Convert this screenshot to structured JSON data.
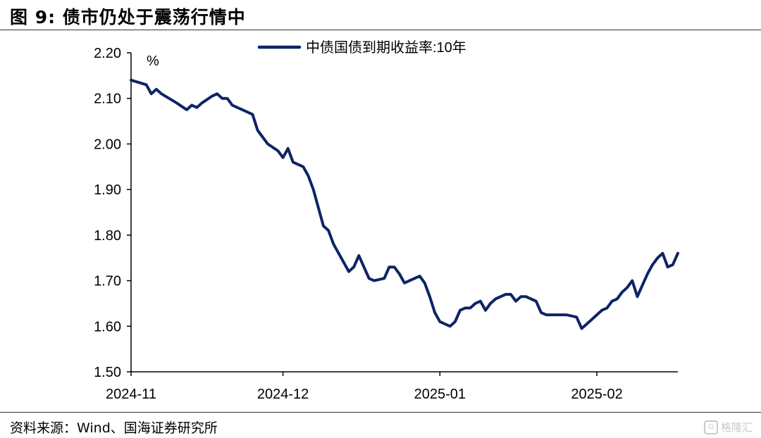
{
  "figure": {
    "title": "图 9:  债市仍处于震荡行情中",
    "source": "资料来源：Wind、国海证券研究所",
    "watermark": "格隆汇",
    "line_color": "#0d2466"
  },
  "chart_data": {
    "type": "line",
    "title": "",
    "xlabel": "",
    "ylabel": "%",
    "ylim": [
      1.5,
      2.2
    ],
    "yticks": [
      "1.50",
      "1.60",
      "1.70",
      "1.80",
      "1.90",
      "2.00",
      "2.10",
      "2.20"
    ],
    "xticks": [
      {
        "label": "2024-11",
        "day": 0
      },
      {
        "label": "2024-12",
        "day": 30
      },
      {
        "label": "2025-01",
        "day": 61
      },
      {
        "label": "2025-02",
        "day": 92
      }
    ],
    "legend": {
      "position": "top-center"
    },
    "grid": false,
    "series": [
      {
        "name": "中债国债到期收益率:10年",
        "points": [
          [
            0,
            2.14
          ],
          [
            3,
            2.13
          ],
          [
            4,
            2.11
          ],
          [
            5,
            2.12
          ],
          [
            6,
            2.11
          ],
          [
            9,
            2.09
          ],
          [
            11,
            2.075
          ],
          [
            12,
            2.085
          ],
          [
            13,
            2.08
          ],
          [
            14,
            2.09
          ],
          [
            16,
            2.105
          ],
          [
            17,
            2.11
          ],
          [
            18,
            2.1
          ],
          [
            19,
            2.1
          ],
          [
            20,
            2.085
          ],
          [
            22,
            2.075
          ],
          [
            24,
            2.065
          ],
          [
            25,
            2.03
          ],
          [
            27,
            2.0
          ],
          [
            29,
            1.985
          ],
          [
            30,
            1.97
          ],
          [
            31,
            1.99
          ],
          [
            32,
            1.96
          ],
          [
            34,
            1.95
          ],
          [
            35,
            1.93
          ],
          [
            36,
            1.9
          ],
          [
            38,
            1.82
          ],
          [
            39,
            1.81
          ],
          [
            40,
            1.78
          ],
          [
            41,
            1.76
          ],
          [
            43,
            1.72
          ],
          [
            44,
            1.73
          ],
          [
            45,
            1.755
          ],
          [
            46,
            1.73
          ],
          [
            47,
            1.705
          ],
          [
            48,
            1.7
          ],
          [
            50,
            1.705
          ],
          [
            51,
            1.73
          ],
          [
            52,
            1.73
          ],
          [
            53,
            1.715
          ],
          [
            54,
            1.695
          ],
          [
            55,
            1.7
          ],
          [
            56,
            1.705
          ],
          [
            57,
            1.71
          ],
          [
            58,
            1.695
          ],
          [
            59,
            1.665
          ],
          [
            60,
            1.63
          ],
          [
            61,
            1.61
          ],
          [
            62,
            1.605
          ],
          [
            63,
            1.6
          ],
          [
            64,
            1.61
          ],
          [
            65,
            1.635
          ],
          [
            66,
            1.64
          ],
          [
            67,
            1.64
          ],
          [
            68,
            1.65
          ],
          [
            69,
            1.655
          ],
          [
            70,
            1.635
          ],
          [
            71,
            1.65
          ],
          [
            72,
            1.66
          ],
          [
            73,
            1.665
          ],
          [
            74,
            1.67
          ],
          [
            75,
            1.67
          ],
          [
            76,
            1.655
          ],
          [
            77,
            1.665
          ],
          [
            78,
            1.665
          ],
          [
            79,
            1.66
          ],
          [
            80,
            1.655
          ],
          [
            81,
            1.63
          ],
          [
            82,
            1.625
          ],
          [
            84,
            1.625
          ],
          [
            86,
            1.625
          ],
          [
            88,
            1.62
          ],
          [
            89,
            1.595
          ],
          [
            90,
            1.605
          ],
          [
            91,
            1.615
          ],
          [
            92,
            1.625
          ],
          [
            93,
            1.635
          ],
          [
            94,
            1.64
          ],
          [
            95,
            1.655
          ],
          [
            96,
            1.66
          ],
          [
            97,
            1.675
          ],
          [
            98,
            1.685
          ],
          [
            99,
            1.7
          ],
          [
            100,
            1.665
          ],
          [
            101,
            1.69
          ],
          [
            102,
            1.715
          ],
          [
            103,
            1.735
          ],
          [
            104,
            1.75
          ],
          [
            105,
            1.76
          ],
          [
            106,
            1.73
          ],
          [
            107,
            1.735
          ],
          [
            108,
            1.76
          ]
        ]
      }
    ]
  }
}
